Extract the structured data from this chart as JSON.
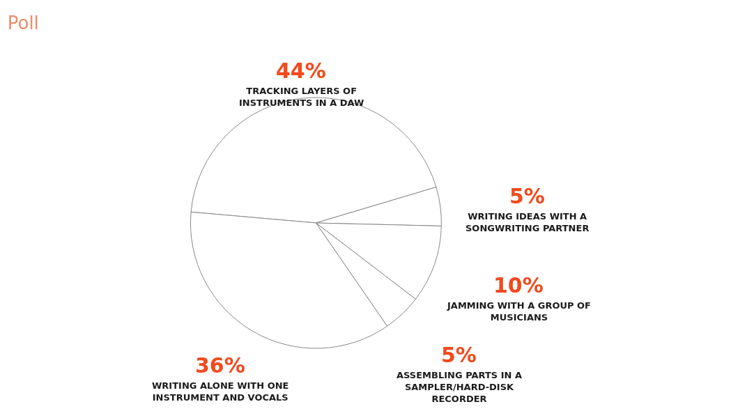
{
  "chart_data": {
    "type": "pie",
    "title": "Poll",
    "categories": [
      "TRACKING LAYERS OF INSTRUMENTS IN A DAW",
      "WRITING IDEAS WITH A SONGWRITING PARTNER",
      "JAMMING WITH A GROUP OF MUSICIANS",
      "ASSEMBLING PARTS IN A SAMPLER/HARD-DISK RECORDER",
      "WRITING ALONE WITH ONE INSTRUMENT AND VOCALS"
    ],
    "values": [
      44,
      5,
      10,
      5,
      36
    ],
    "value_labels": [
      "44%",
      "5%",
      "10%",
      "5%",
      "36%"
    ],
    "colors": [
      "#ffffff",
      "#ffffff",
      "#ffffff",
      "#ffffff",
      "#ffffff"
    ],
    "legend": false
  }
}
